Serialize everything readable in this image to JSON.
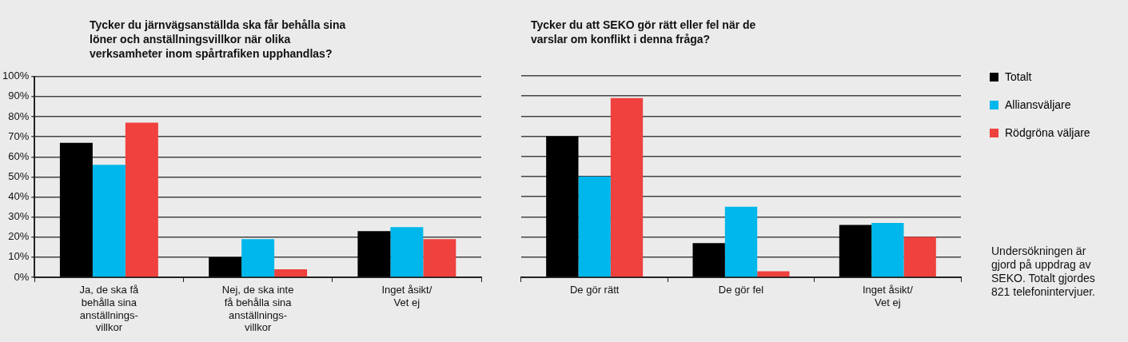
{
  "chart_data": [
    {
      "type": "bar",
      "title": "Tycker du järnvägsanställda ska får behålla sina löner och anställningsvillkor när olika verksamheter inom spårtrafiken upphandlas?",
      "categories": [
        "Ja, de ska få behålla sina anställnings-villkor",
        "Nej, de ska inte få behålla sina anställnings-villkor",
        "Inget åsikt/ Vet ej"
      ],
      "series": [
        {
          "color": "#000000",
          "values": [
            67,
            10,
            23
          ]
        },
        {
          "color": "#00b7eb",
          "values": [
            56,
            19,
            25
          ]
        },
        {
          "color": "#ef413d",
          "values": [
            77,
            4,
            19
          ]
        }
      ],
      "ylim": [
        0,
        100
      ],
      "yticks": [
        {
          "value": 0,
          "label": "0%"
        },
        {
          "value": 10,
          "label": "10%"
        },
        {
          "value": 20,
          "label": "20%"
        },
        {
          "value": 30,
          "label": "30%"
        },
        {
          "value": 40,
          "label": "40%"
        },
        {
          "value": 50,
          "label": "50%"
        },
        {
          "value": 60,
          "label": "60%"
        },
        {
          "value": 70,
          "label": "70%"
        },
        {
          "value": 80,
          "label": "80%"
        },
        {
          "value": 90,
          "label": "90%"
        },
        {
          "value": 100,
          "label": "100%"
        }
      ],
      "grid": "y"
    },
    {
      "type": "bar",
      "title": "Tycker du att SEKO gör rätt eller fel när de varslar om konflikt i denna fråga?",
      "categories": [
        "De gör rätt",
        "De gör fel",
        "Inget åsikt/ Vet ej"
      ],
      "series": [
        {
          "name": "Totalt",
          "color": "#000000",
          "values": [
            70,
            17,
            26
          ]
        },
        {
          "name": "Alliansväljare",
          "color": "#00b7eb",
          "values": [
            50,
            35,
            27
          ]
        },
        {
          "name": "Rödgröna väljare",
          "color": "#ef413d",
          "values": [
            89,
            3,
            20
          ]
        }
      ],
      "ylim": [
        0,
        100
      ],
      "yticks": [
        0,
        10,
        20,
        30,
        40,
        50,
        60,
        70,
        80,
        90,
        100
      ],
      "grid": "y",
      "legend": "right",
      "tick_labels": "x",
      "annotations": [
        "Undersökningen är gjord på uppdrag av SEKO. Totalt gjordes 821 telefonintervjuer."
      ]
    }
  ]
}
